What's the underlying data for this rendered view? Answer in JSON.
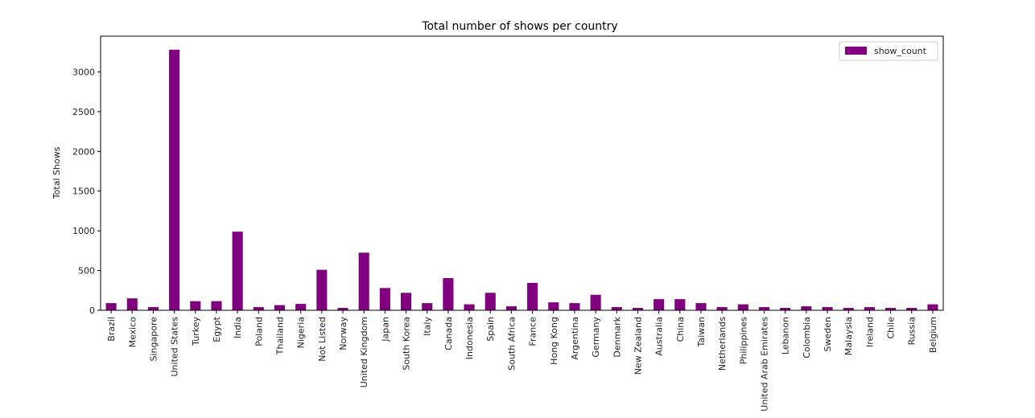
{
  "chart_data": {
    "type": "bar",
    "title": "Total number of shows per country",
    "xlabel": "",
    "ylabel": "Total Shows",
    "ylim": [
      0,
      3450
    ],
    "yticks": [
      0,
      500,
      1000,
      1500,
      2000,
      2500,
      3000
    ],
    "grid": false,
    "legend_position": "top-right",
    "bar_color": "#800080",
    "categories": [
      "Brazil",
      "Mexico",
      "Singapore",
      "United States",
      "Turkey",
      "Egypt",
      "India",
      "Poland",
      "Thailand",
      "Nigeria",
      "Not Listed",
      "Norway",
      "United Kingdom",
      "Japan",
      "South Korea",
      "Italy",
      "Canada",
      "Indonesia",
      "Spain",
      "South Africa",
      "France",
      "Hong Kong",
      "Argentina",
      "Germany",
      "Denmark",
      "New Zealand",
      "Australia",
      "China",
      "Taiwan",
      "Netherlands",
      "Philippines",
      "United Arab Emirates",
      "Lebanon",
      "Colombia",
      "Sweden",
      "Malaysia",
      "Ireland",
      "Chile",
      "Russia",
      "Belgium"
    ],
    "series": [
      {
        "name": "show_count",
        "values": [
          90,
          150,
          40,
          3280,
          115,
          115,
          990,
          40,
          65,
          80,
          510,
          30,
          725,
          280,
          220,
          90,
          405,
          75,
          220,
          50,
          345,
          100,
          90,
          195,
          40,
          30,
          140,
          140,
          90,
          40,
          75,
          40,
          30,
          50,
          40,
          30,
          40,
          30,
          30,
          75
        ]
      }
    ]
  }
}
